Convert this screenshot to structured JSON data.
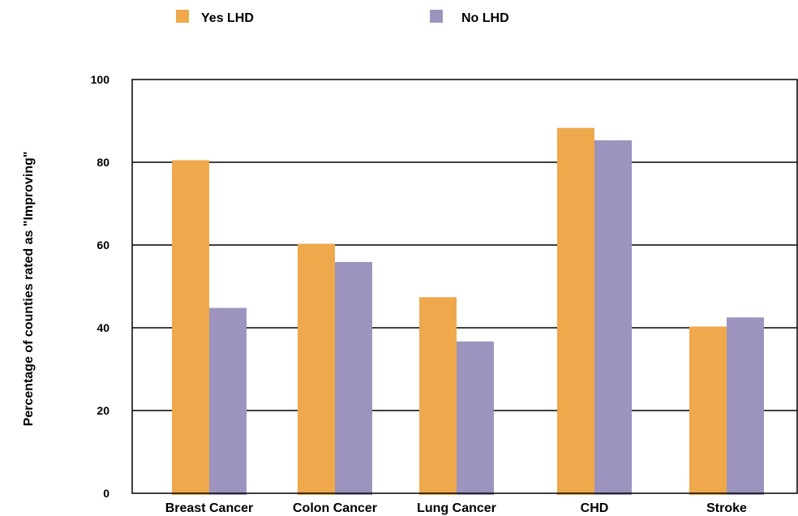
{
  "chart_data": {
    "type": "bar",
    "title": "",
    "xlabel": "",
    "ylabel": "Percentage of counties rated as \"Improving\"",
    "categories": [
      "Breast Cancer",
      "Colon Cancer",
      "Lung Cancer",
      "CHD",
      "Stroke"
    ],
    "series": [
      {
        "name": "Yes LHD",
        "color": "#EFA84B",
        "values": [
          80.5,
          60.3,
          47.4,
          88.3,
          40.3
        ]
      },
      {
        "name": "No LHD",
        "color": "#9C94BE",
        "values": [
          44.8,
          55.9,
          36.7,
          85.3,
          42.5
        ]
      }
    ],
    "ylim": [
      0,
      100
    ],
    "yticks": [
      0,
      20,
      40,
      60,
      80,
      100
    ],
    "grid": true,
    "legend_position": "top"
  }
}
